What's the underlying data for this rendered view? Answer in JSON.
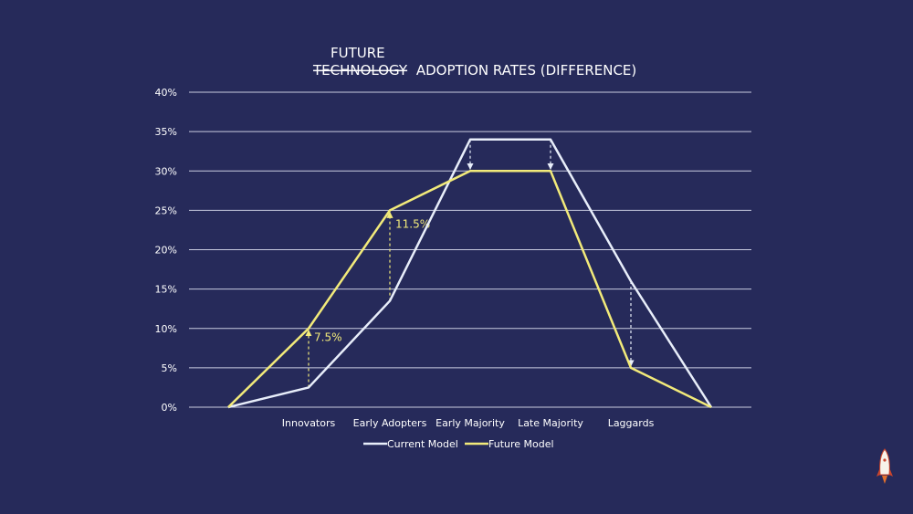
{
  "chart_data": {
    "type": "line",
    "title_line1": "FUTURE",
    "title_struck": "TECHNOLOGY",
    "title_rest": "ADOPTION RATES (DIFFERENCE)",
    "categories": [
      "",
      "Innovators",
      "Early Adopters",
      "Early Majority",
      "Late Majority",
      "Laggards",
      ""
    ],
    "y_ticks": [
      "0%",
      "5%",
      "10%",
      "15%",
      "20%",
      "25%",
      "30%",
      "35%",
      "40%"
    ],
    "ylim": [
      0,
      40
    ],
    "grid": true,
    "legend_position": "bottom",
    "series": [
      {
        "name": "Current Model",
        "color": "#e8eefa",
        "values": [
          0,
          2.5,
          13.5,
          34,
          34,
          16,
          0
        ]
      },
      {
        "name": "Future Model",
        "color": "#f2ea7a",
        "values": [
          0,
          10,
          25,
          30,
          30,
          5,
          0
        ]
      }
    ],
    "annotations": [
      {
        "label": "7.5%",
        "x_index": 1,
        "from": 2.5,
        "to": 10,
        "direction": "up"
      },
      {
        "label": "11.5%",
        "x_index": 2,
        "from": 13.5,
        "to": 25,
        "direction": "up"
      },
      {
        "label": "",
        "x_index": 3,
        "from": 34,
        "to": 30,
        "direction": "down"
      },
      {
        "label": "",
        "x_index": 4,
        "from": 34,
        "to": 30,
        "direction": "down"
      },
      {
        "label": "",
        "x_index": 5,
        "from": 16,
        "to": 5,
        "direction": "down"
      }
    ]
  },
  "logo_icon": "rocket-icon"
}
